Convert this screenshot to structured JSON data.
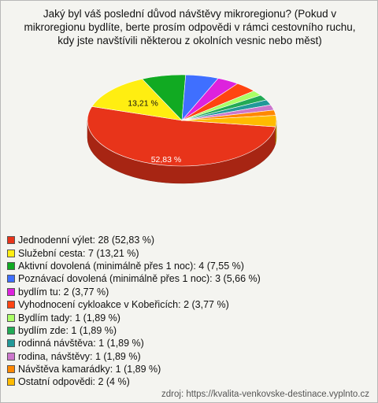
{
  "chart_data": {
    "type": "pie",
    "title": "Jaký byl váš poslední důvod návštěvy mikroregionu? (Pokud v mikroregionu bydlíte, berte prosím odpovědi v rámci cestovního ruchu, kdy jste navštívili některou z okolních vesnic nebo měst)",
    "categories": [
      "Jednodenní výlet: 28 (52,83 %)",
      "Služební cesta: 7 (13,21 %)",
      "Aktivní dovolená (minimálně přes 1 noc): 4 (7,55 %)",
      "Poznávací dovolená (minimálně přes 1 noc): 3 (5,66 %)",
      "bydlím tu: 2 (3,77 %)",
      "Vyhodnocení cykloakce v Kobeřicích: 2 (3,77 %)",
      "Bydlím tady: 1 (1,89 %)",
      "bydlím zde: 1 (1,89 %)",
      "rodinná návštěva: 1 (1,89 %)",
      "rodina, návštěvy: 1 (1,89 %)",
      "Návštěva kamarádky: 1 (1,89 %)",
      "Ostatní odpovědi: 2 (4 %)"
    ],
    "values": [
      52.83,
      13.21,
      7.55,
      5.66,
      3.77,
      3.77,
      1.89,
      1.89,
      1.89,
      1.89,
      1.89,
      4
    ],
    "value_labels": [
      "52,83 %",
      "13,21 %",
      null,
      null,
      null,
      null,
      null,
      null,
      null,
      null,
      null,
      null
    ],
    "colors": [
      "#e8341a",
      "#ffee11",
      "#11aa22",
      "#3f6fff",
      "#dd22dd",
      "#ff4411",
      "#aaff66",
      "#22aa55",
      "#229999",
      "#cc77cc",
      "#ff8800",
      "#ffbb00"
    ],
    "source": "zdroj: https://kvalita-venkovske-destinace.vyplnto.cz"
  }
}
